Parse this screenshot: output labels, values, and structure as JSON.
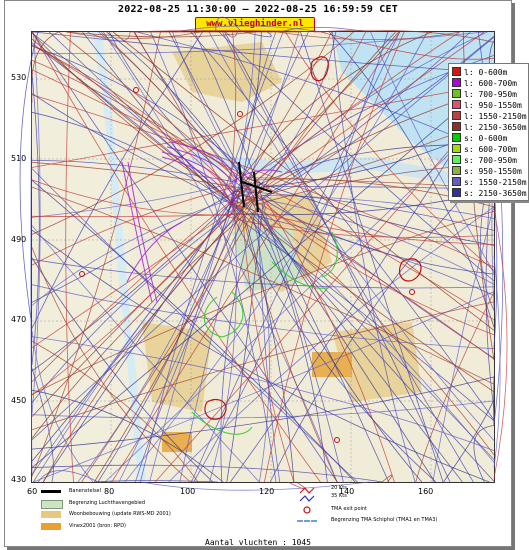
{
  "header": {
    "title": "2022-08-25 11:30:00 – 2022-08-25 16:59:59 CET",
    "brand": "www.vlieghinder.nl"
  },
  "axes": {
    "y_ticks": [
      "530",
      "510",
      "490",
      "470",
      "450",
      "430"
    ],
    "x_ticks": [
      "60",
      "80",
      "100",
      "120",
      "140",
      "160"
    ],
    "y_range": [
      430,
      540
    ],
    "x_range": [
      60,
      175
    ]
  },
  "legend": {
    "items": [
      {
        "label": "l: 0-600m",
        "color": "#e01010"
      },
      {
        "label": "l: 600-700m",
        "color": "#b000e0"
      },
      {
        "label": "l: 700-950m",
        "color": "#70c020"
      },
      {
        "label": "l: 950-1550m",
        "color": "#e05070"
      },
      {
        "label": "l: 1550-2150m",
        "color": "#c04040"
      },
      {
        "label": "l: 2150-3650m",
        "color": "#903020"
      },
      {
        "label": "s: 0-600m",
        "color": "#00d000"
      },
      {
        "label": "s: 600-700m",
        "color": "#a0e000"
      },
      {
        "label": "s: 700-950m",
        "color": "#60f060"
      },
      {
        "label": "s: 950-1550m",
        "color": "#90b040"
      },
      {
        "label": "s: 1550-2150m",
        "color": "#6060c0"
      },
      {
        "label": "s: 2150-3650m",
        "color": "#3030a0"
      }
    ]
  },
  "map_legend": {
    "runways": "Banenstelsel",
    "airport_boundary": "Begrenzing Luchthavengebied",
    "housing": "Woonbebouwing (update RWS-MD 2001)",
    "vinex": "Vinex2001 (bron: RPD)",
    "wind_20": "20 Kts",
    "wind_35": "35 Kts",
    "tma_exit": "TMA exit point",
    "tma_boundary": "Begrenzing TMA Schiphol  (TMA1 en TMA3)"
  },
  "footer": {
    "count": "Aantal vluchten : 1045"
  },
  "colors": {
    "landing_dark": "#8b2a1a",
    "landing_red": "#c03030",
    "starting_blue": "#3a3aa8",
    "purple": "#a020e0",
    "green": "#30d030",
    "badge_bg": "#ffe600",
    "badge_text": "#c00000"
  }
}
